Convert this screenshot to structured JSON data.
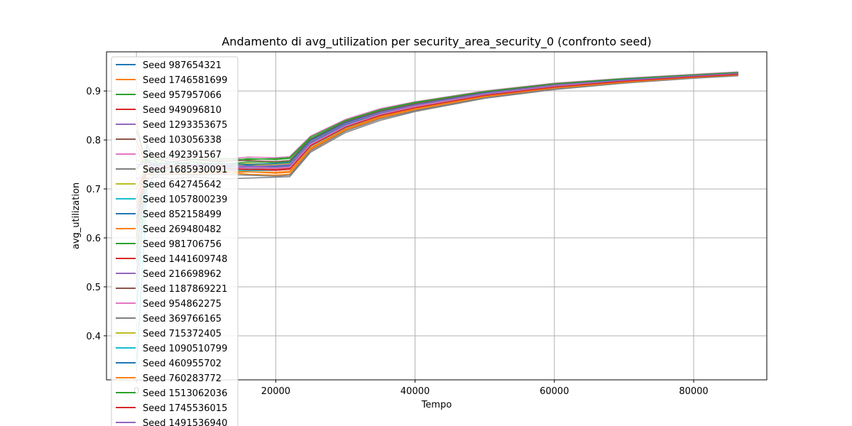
{
  "chart_data": {
    "type": "line",
    "title": "Andamento di avg_utilization per security_area_security_0 (confronto seed)",
    "xlabel": "Tempo",
    "ylabel": "avg_utilization",
    "xlim": [
      -4300,
      90500
    ],
    "ylim": [
      0.31,
      0.98
    ],
    "xticks": [
      0,
      20000,
      40000,
      60000,
      80000
    ],
    "xtick_labels": [
      "0",
      "20000",
      "40000",
      "60000",
      "80000"
    ],
    "yticks": [
      0.4,
      0.5,
      0.6,
      0.7,
      0.8,
      0.9
    ],
    "ytick_labels": [
      "0.4",
      "0.5",
      "0.6",
      "0.7",
      "0.8",
      "0.9"
    ],
    "grid": true,
    "legend_position": "upper-left",
    "palette": [
      "#1f77b4",
      "#ff7f0e",
      "#2ca02c",
      "#d62728",
      "#9467bd",
      "#8c564b",
      "#e377c2",
      "#7f7f7f",
      "#bcbd22",
      "#17becf"
    ],
    "x": [
      0,
      1500,
      3000,
      5000,
      8000,
      12000,
      16000,
      20000,
      22000,
      25000,
      30000,
      35000,
      40000,
      50000,
      60000,
      70000,
      80000,
      86400
    ],
    "series": [
      {
        "name": "Seed 987654321",
        "values": [
          0.55,
          0.79,
          0.75,
          0.74,
          0.745,
          0.74,
          0.745,
          0.74,
          0.742,
          0.79,
          0.828,
          0.852,
          0.868,
          0.893,
          0.91,
          0.921,
          0.93,
          0.935
        ]
      },
      {
        "name": "Seed 1746581699",
        "values": [
          0.84,
          0.72,
          0.74,
          0.735,
          0.73,
          0.735,
          0.73,
          0.728,
          0.73,
          0.78,
          0.82,
          0.845,
          0.862,
          0.888,
          0.906,
          0.918,
          0.928,
          0.933
        ]
      },
      {
        "name": "Seed 957957066",
        "values": [
          0.62,
          0.78,
          0.76,
          0.755,
          0.76,
          0.755,
          0.762,
          0.76,
          0.762,
          0.803,
          0.838,
          0.86,
          0.875,
          0.898,
          0.914,
          0.924,
          0.932,
          0.937
        ]
      },
      {
        "name": "Seed 949096810",
        "values": [
          0.7,
          0.74,
          0.75,
          0.745,
          0.74,
          0.745,
          0.74,
          0.738,
          0.74,
          0.788,
          0.826,
          0.85,
          0.866,
          0.891,
          0.908,
          0.92,
          0.929,
          0.934
        ]
      },
      {
        "name": "Seed 1293353675",
        "values": [
          0.5,
          0.76,
          0.745,
          0.75,
          0.745,
          0.75,
          0.745,
          0.746,
          0.748,
          0.794,
          0.831,
          0.855,
          0.87,
          0.894,
          0.911,
          0.922,
          0.931,
          0.936
        ]
      },
      {
        "name": "Seed 103056338",
        "values": [
          0.66,
          0.73,
          0.74,
          0.745,
          0.74,
          0.735,
          0.74,
          0.742,
          0.745,
          0.792,
          0.829,
          0.853,
          0.868,
          0.892,
          0.909,
          0.921,
          0.93,
          0.935
        ]
      },
      {
        "name": "Seed 492391567",
        "values": [
          0.74,
          0.77,
          0.765,
          0.76,
          0.765,
          0.76,
          0.765,
          0.764,
          0.766,
          0.808,
          0.842,
          0.864,
          0.878,
          0.9,
          0.916,
          0.926,
          0.934,
          0.939
        ]
      },
      {
        "name": "Seed 1685930091",
        "values": [
          0.58,
          0.72,
          0.725,
          0.72,
          0.725,
          0.72,
          0.722,
          0.724,
          0.725,
          0.775,
          0.815,
          0.84,
          0.858,
          0.885,
          0.903,
          0.916,
          0.926,
          0.931
        ]
      },
      {
        "name": "Seed 642745642",
        "values": [
          0.76,
          0.75,
          0.755,
          0.75,
          0.755,
          0.75,
          0.752,
          0.75,
          0.752,
          0.797,
          0.834,
          0.857,
          0.872,
          0.896,
          0.912,
          0.923,
          0.932,
          0.936
        ]
      },
      {
        "name": "Seed 1057800239",
        "values": [
          0.33,
          0.7,
          0.74,
          0.745,
          0.74,
          0.745,
          0.742,
          0.744,
          0.746,
          0.793,
          0.83,
          0.854,
          0.869,
          0.893,
          0.91,
          0.921,
          0.93,
          0.935
        ]
      },
      {
        "name": "Seed 852158499",
        "values": [
          0.64,
          0.75,
          0.74,
          0.745,
          0.75,
          0.745,
          0.748,
          0.746,
          0.748,
          0.795,
          0.832,
          0.855,
          0.87,
          0.894,
          0.911,
          0.922,
          0.931,
          0.936
        ]
      },
      {
        "name": "Seed 269480482",
        "values": [
          0.8,
          0.74,
          0.735,
          0.74,
          0.735,
          0.738,
          0.735,
          0.734,
          0.736,
          0.784,
          0.823,
          0.848,
          0.864,
          0.89,
          0.907,
          0.919,
          0.929,
          0.934
        ]
      },
      {
        "name": "Seed 981706756",
        "values": [
          0.56,
          0.76,
          0.755,
          0.75,
          0.755,
          0.75,
          0.755,
          0.754,
          0.756,
          0.8,
          0.836,
          0.858,
          0.873,
          0.897,
          0.913,
          0.923,
          0.932,
          0.937
        ]
      },
      {
        "name": "Seed 1441609748",
        "values": [
          0.68,
          0.745,
          0.74,
          0.745,
          0.74,
          0.745,
          0.738,
          0.74,
          0.742,
          0.789,
          0.827,
          0.851,
          0.867,
          0.891,
          0.909,
          0.92,
          0.93,
          0.935
        ]
      },
      {
        "name": "Seed 216698962",
        "values": [
          0.72,
          0.73,
          0.745,
          0.74,
          0.745,
          0.742,
          0.745,
          0.744,
          0.746,
          0.792,
          0.829,
          0.853,
          0.869,
          0.893,
          0.91,
          0.921,
          0.93,
          0.935
        ]
      },
      {
        "name": "Seed 1187869221",
        "values": [
          0.6,
          0.77,
          0.76,
          0.755,
          0.76,
          0.757,
          0.758,
          0.756,
          0.758,
          0.801,
          0.837,
          0.859,
          0.874,
          0.897,
          0.913,
          0.924,
          0.932,
          0.937
        ]
      },
      {
        "name": "Seed 954862275",
        "values": [
          0.78,
          0.74,
          0.745,
          0.74,
          0.745,
          0.74,
          0.743,
          0.742,
          0.744,
          0.791,
          0.828,
          0.852,
          0.868,
          0.892,
          0.909,
          0.921,
          0.93,
          0.935
        ]
      },
      {
        "name": "Seed 369766165",
        "values": [
          0.52,
          0.73,
          0.728,
          0.73,
          0.728,
          0.73,
          0.728,
          0.726,
          0.728,
          0.778,
          0.818,
          0.843,
          0.86,
          0.886,
          0.905,
          0.917,
          0.927,
          0.932
        ]
      },
      {
        "name": "Seed 715372405",
        "values": [
          0.7,
          0.75,
          0.75,
          0.745,
          0.75,
          0.748,
          0.75,
          0.748,
          0.75,
          0.796,
          0.833,
          0.856,
          0.871,
          0.895,
          0.912,
          0.922,
          0.931,
          0.936
        ]
      },
      {
        "name": "Seed 1090510799",
        "values": [
          0.45,
          0.74,
          0.735,
          0.74,
          0.735,
          0.74,
          0.737,
          0.738,
          0.74,
          0.787,
          0.825,
          0.85,
          0.866,
          0.891,
          0.908,
          0.92,
          0.929,
          0.934
        ]
      },
      {
        "name": "Seed 460955702",
        "values": [
          0.82,
          0.755,
          0.75,
          0.755,
          0.75,
          0.752,
          0.75,
          0.752,
          0.754,
          0.799,
          0.835,
          0.857,
          0.872,
          0.896,
          0.912,
          0.923,
          0.931,
          0.936
        ]
      },
      {
        "name": "Seed 760283772",
        "values": [
          0.67,
          0.73,
          0.735,
          0.73,
          0.735,
          0.732,
          0.735,
          0.732,
          0.734,
          0.782,
          0.821,
          0.846,
          0.863,
          0.889,
          0.906,
          0.918,
          0.928,
          0.933
        ]
      },
      {
        "name": "Seed 1513062036",
        "values": [
          0.74,
          0.765,
          0.76,
          0.765,
          0.76,
          0.762,
          0.76,
          0.762,
          0.764,
          0.806,
          0.84,
          0.862,
          0.877,
          0.899,
          0.915,
          0.925,
          0.933,
          0.938
        ]
      },
      {
        "name": "Seed 1745536015",
        "values": [
          0.63,
          0.745,
          0.74,
          0.745,
          0.74,
          0.742,
          0.74,
          0.738,
          0.74,
          0.788,
          0.826,
          0.85,
          0.866,
          0.891,
          0.908,
          0.92,
          0.929,
          0.934
        ]
      },
      {
        "name": "Seed 1491536940",
        "values": [
          0.75,
          0.75,
          0.748,
          0.75,
          0.748,
          0.75,
          0.746,
          0.748,
          0.75,
          0.796,
          0.833,
          0.856,
          0.871,
          0.895,
          0.912,
          0.922,
          0.931,
          0.936
        ]
      }
    ]
  }
}
